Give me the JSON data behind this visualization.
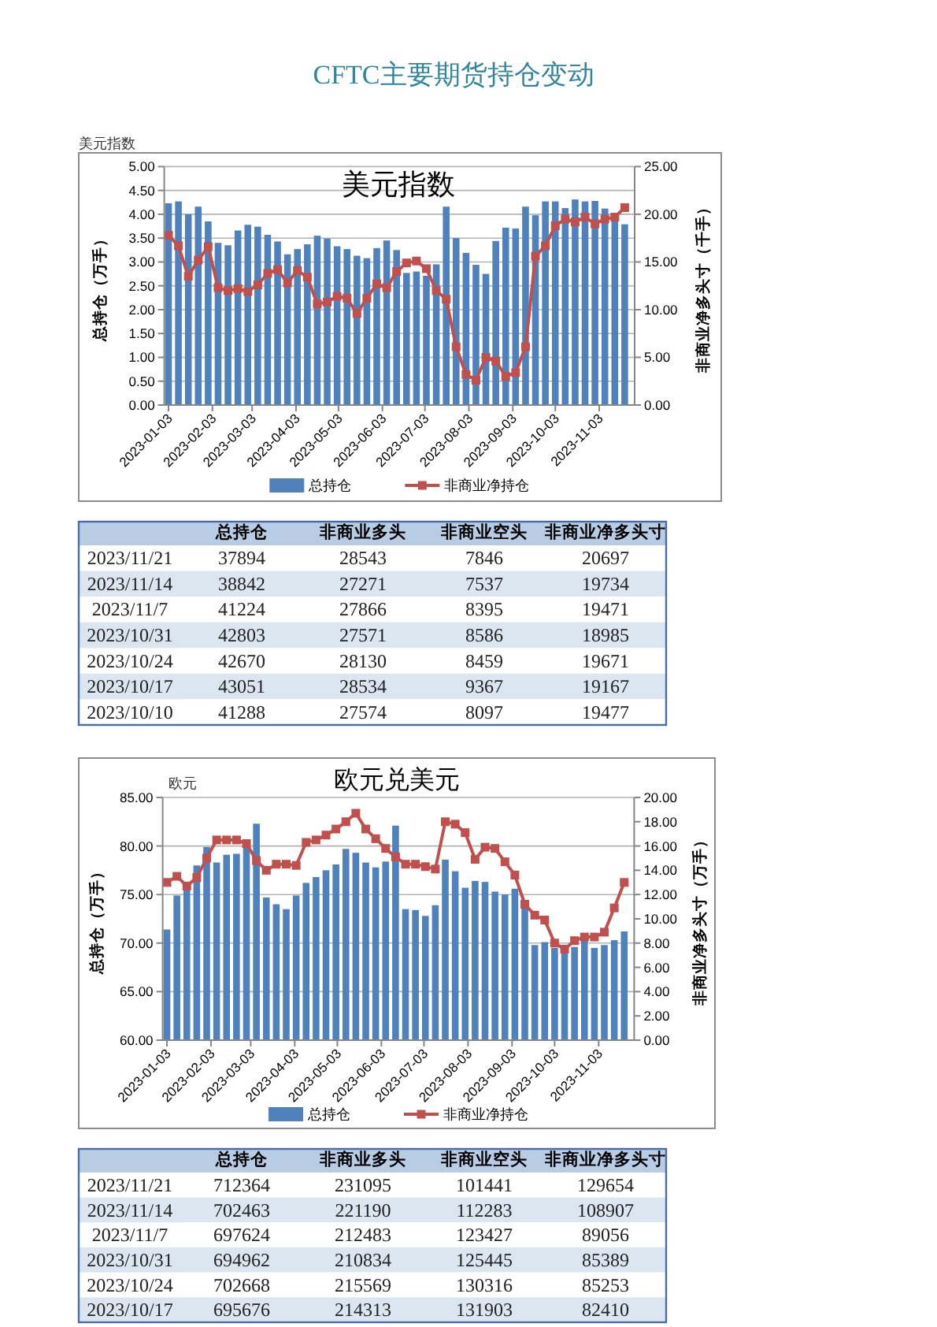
{
  "chart_data": [
    {
      "type": "other",
      "title": "CFTC主要期货持仓变动"
    },
    {
      "type": "bar",
      "subtitle": "美元指数",
      "title": "美元指数",
      "ylabel": "总持仓（万手）",
      "y2label": "非商业净多头寸（千手）",
      "x": [
        "2023-01-03",
        "2023-01-10",
        "2023-01-17",
        "2023-01-24",
        "2023-01-31",
        "2023-02-07",
        "2023-02-14",
        "2023-02-21",
        "2023-02-28",
        "2023-03-07",
        "2023-03-14",
        "2023-03-21",
        "2023-03-28",
        "2023-04-04",
        "2023-04-11",
        "2023-04-18",
        "2023-04-25",
        "2023-05-02",
        "2023-05-09",
        "2023-05-16",
        "2023-05-23",
        "2023-05-30",
        "2023-06-06",
        "2023-06-13",
        "2023-06-20",
        "2023-06-27",
        "2023-07-04",
        "2023-07-11",
        "2023-07-18",
        "2023-07-25",
        "2023-08-01",
        "2023-08-08",
        "2023-08-15",
        "2023-08-22",
        "2023-08-29",
        "2023-09-05",
        "2023-09-12",
        "2023-09-19",
        "2023-09-26",
        "2023-10-03",
        "2023-10-10",
        "2023-10-17",
        "2023-10-24",
        "2023-10-31",
        "2023-11-07",
        "2023-11-14",
        "2023-11-21"
      ],
      "xlim": [
        "2022-12-31",
        "2023-11-28"
      ],
      "xticks": [
        "2023-01-03",
        "2023-02-03",
        "2023-03-03",
        "2023-04-03",
        "2023-05-03",
        "2023-06-03",
        "2023-07-03",
        "2023-08-03",
        "2023-09-03",
        "2023-10-03",
        "2023-11-03"
      ],
      "ylim": [
        0,
        5
      ],
      "yticks": [
        {
          "value": 0,
          "label": "0.00"
        },
        {
          "value": 0.5,
          "label": "0.50"
        },
        {
          "value": 1,
          "label": "1.00"
        },
        {
          "value": 1.5,
          "label": "1.50"
        },
        {
          "value": 2,
          "label": "2.00"
        },
        {
          "value": 2.5,
          "label": "2.50"
        },
        {
          "value": 3,
          "label": "3.00"
        },
        {
          "value": 3.5,
          "label": "3.50"
        },
        {
          "value": 4,
          "label": "4.00"
        },
        {
          "value": 4.5,
          "label": "4.50"
        },
        {
          "value": 5,
          "label": "5.00"
        }
      ],
      "y2lim": [
        0,
        25
      ],
      "y2ticks": [
        {
          "value": 0,
          "label": "0.00"
        },
        {
          "value": 5,
          "label": "5.00"
        },
        {
          "value": 10,
          "label": "10.00"
        },
        {
          "value": 15,
          "label": "15.00"
        },
        {
          "value": 20,
          "label": "20.00"
        },
        {
          "value": 25,
          "label": "25.00"
        }
      ],
      "grid": "y",
      "legend": "bottom",
      "marker": "square",
      "line_style": "solid",
      "series": [
        {
          "name": "总持仓",
          "type": "bar",
          "color": "#4f81bd",
          "values": [
            4.23,
            4.27,
            4.0,
            4.16,
            3.85,
            3.4,
            3.35,
            3.66,
            3.78,
            3.74,
            3.57,
            3.43,
            3.16,
            3.27,
            3.37,
            3.55,
            3.49,
            3.33,
            3.27,
            3.13,
            3.08,
            3.29,
            3.45,
            3.25,
            2.77,
            2.8,
            2.71,
            2.95,
            4.16,
            3.5,
            3.19,
            2.94,
            2.75,
            3.44,
            3.72,
            3.7,
            4.16,
            3.98,
            4.27,
            4.27,
            4.13,
            4.31,
            4.27,
            4.28,
            4.12,
            3.88,
            3.79
          ]
        },
        {
          "name": "非商业净持仓",
          "type": "line",
          "axis": "y2",
          "color": "#c0504d",
          "values": [
            17.8,
            16.7,
            13.5,
            15.2,
            16.6,
            12.3,
            12.0,
            12.2,
            11.9,
            12.6,
            13.8,
            14.2,
            12.8,
            14.1,
            13.4,
            10.6,
            10.8,
            11.4,
            11.2,
            9.6,
            11.2,
            12.7,
            12.3,
            14.0,
            14.9,
            15.1,
            14.3,
            12.0,
            11.1,
            6.1,
            3.2,
            2.6,
            5.0,
            4.6,
            3.0,
            3.4,
            6.1,
            15.6,
            16.7,
            18.8,
            19.5,
            19.2,
            19.7,
            19.0,
            19.5,
            19.7,
            20.7
          ]
        }
      ]
    },
    {
      "type": "heatmap",
      "data_labels": true,
      "categories": [
        "总持仓",
        "非商业多头",
        "非商业空头",
        "非商业净多头寸"
      ],
      "y_categories": [
        "2023/11/21",
        "2023/11/14",
        "2023/11/7",
        "2023/10/31",
        "2023/10/24",
        "2023/10/17",
        "2023/10/10"
      ],
      "cells": [
        [
          37894,
          28543,
          7846,
          20697
        ],
        [
          38842,
          27271,
          7537,
          19734
        ],
        [
          41224,
          27866,
          8395,
          19471
        ],
        [
          42803,
          27571,
          8586,
          18985
        ],
        [
          42670,
          28130,
          8459,
          19671
        ],
        [
          43051,
          28534,
          9367,
          19167
        ],
        [
          41288,
          27574,
          8097,
          19477
        ]
      ]
    },
    {
      "type": "bar",
      "subtitle": "欧元",
      "title": "欧元兑美元",
      "ylabel": "总持仓（万手）",
      "y2label": "非商业净多头寸（万手）",
      "x": [
        "2023-01-03",
        "2023-01-10",
        "2023-01-17",
        "2023-01-24",
        "2023-01-31",
        "2023-02-07",
        "2023-02-14",
        "2023-02-21",
        "2023-02-28",
        "2023-03-07",
        "2023-03-14",
        "2023-03-21",
        "2023-03-28",
        "2023-04-04",
        "2023-04-11",
        "2023-04-18",
        "2023-04-25",
        "2023-05-02",
        "2023-05-09",
        "2023-05-16",
        "2023-05-23",
        "2023-05-30",
        "2023-06-06",
        "2023-06-13",
        "2023-06-20",
        "2023-06-27",
        "2023-07-04",
        "2023-07-11",
        "2023-07-18",
        "2023-07-25",
        "2023-08-01",
        "2023-08-08",
        "2023-08-15",
        "2023-08-22",
        "2023-08-29",
        "2023-09-05",
        "2023-09-12",
        "2023-09-19",
        "2023-09-26",
        "2023-10-03",
        "2023-10-10",
        "2023-10-17",
        "2023-10-24",
        "2023-10-31",
        "2023-11-07",
        "2023-11-14",
        "2023-11-21"
      ],
      "xlim": [
        "2022-12-31",
        "2023-11-28"
      ],
      "xticks": [
        "2023-01-03",
        "2023-02-03",
        "2023-03-03",
        "2023-04-03",
        "2023-05-03",
        "2023-06-03",
        "2023-07-03",
        "2023-08-03",
        "2023-09-03",
        "2023-10-03",
        "2023-11-03"
      ],
      "ylim": [
        60,
        85
      ],
      "yticks": [
        {
          "value": 60,
          "label": "60.00"
        },
        {
          "value": 65,
          "label": "65.00"
        },
        {
          "value": 70,
          "label": "70.00"
        },
        {
          "value": 75,
          "label": "75.00"
        },
        {
          "value": 80,
          "label": "80.00"
        },
        {
          "value": 85,
          "label": "85.00"
        }
      ],
      "y2lim": [
        0,
        20
      ],
      "y2ticks": [
        {
          "value": 0,
          "label": "0.00"
        },
        {
          "value": 2,
          "label": "2.00"
        },
        {
          "value": 4,
          "label": "4.00"
        },
        {
          "value": 6,
          "label": "6.00"
        },
        {
          "value": 8,
          "label": "8.00"
        },
        {
          "value": 10,
          "label": "10.00"
        },
        {
          "value": 12,
          "label": "12.00"
        },
        {
          "value": 14,
          "label": "14.00"
        },
        {
          "value": 16,
          "label": "16.00"
        },
        {
          "value": 18,
          "label": "18.00"
        },
        {
          "value": 20,
          "label": "20.00"
        }
      ],
      "grid": "y",
      "legend": "bottom",
      "marker": "square",
      "line_style": "solid",
      "series": [
        {
          "name": "总持仓",
          "type": "bar",
          "color": "#4f81bd",
          "values": [
            71.4,
            74.9,
            75.9,
            78.0,
            79.9,
            78.3,
            79.1,
            79.2,
            80.1,
            82.3,
            74.7,
            74.0,
            73.5,
            74.9,
            76.2,
            76.8,
            77.5,
            78.1,
            79.7,
            79.3,
            78.3,
            77.8,
            78.4,
            82.1,
            73.5,
            73.4,
            72.8,
            73.9,
            78.6,
            77.4,
            75.7,
            76.4,
            76.3,
            75.3,
            75.0,
            75.6,
            73.6,
            69.8,
            70.1,
            69.5,
            69.0,
            69.6,
            70.3,
            69.5,
            69.8,
            70.3,
            71.2
          ]
        },
        {
          "name": "非商业净持仓",
          "type": "line",
          "axis": "y2",
          "color": "#c0504d",
          "values": [
            13.0,
            13.5,
            12.7,
            13.4,
            15.0,
            16.5,
            16.5,
            16.5,
            16.2,
            14.8,
            14.0,
            14.5,
            14.5,
            14.4,
            16.3,
            16.5,
            16.9,
            17.4,
            18.0,
            18.7,
            17.4,
            16.6,
            15.8,
            15.1,
            14.5,
            14.5,
            14.3,
            14.1,
            18.0,
            17.8,
            17.1,
            14.9,
            15.9,
            15.8,
            14.7,
            13.6,
            11.2,
            10.3,
            9.9,
            8.0,
            7.5,
            8.2,
            8.5,
            8.5,
            8.9,
            10.9,
            13.0
          ]
        }
      ]
    },
    {
      "type": "heatmap",
      "data_labels": true,
      "categories": [
        "总持仓",
        "非商业多头",
        "非商业空头",
        "非商业净多头寸"
      ],
      "y_categories": [
        "2023/11/21",
        "2023/11/14",
        "2023/11/7",
        "2023/10/31",
        "2023/10/24",
        "2023/10/17"
      ],
      "cells": [
        [
          712364,
          231095,
          101441,
          129654
        ],
        [
          702463,
          221190,
          112283,
          108907
        ],
        [
          697624,
          212483,
          123427,
          89056
        ],
        [
          694962,
          210834,
          125445,
          85389
        ],
        [
          702668,
          215569,
          130316,
          85253
        ],
        [
          695676,
          214313,
          131903,
          82410
        ]
      ]
    }
  ]
}
